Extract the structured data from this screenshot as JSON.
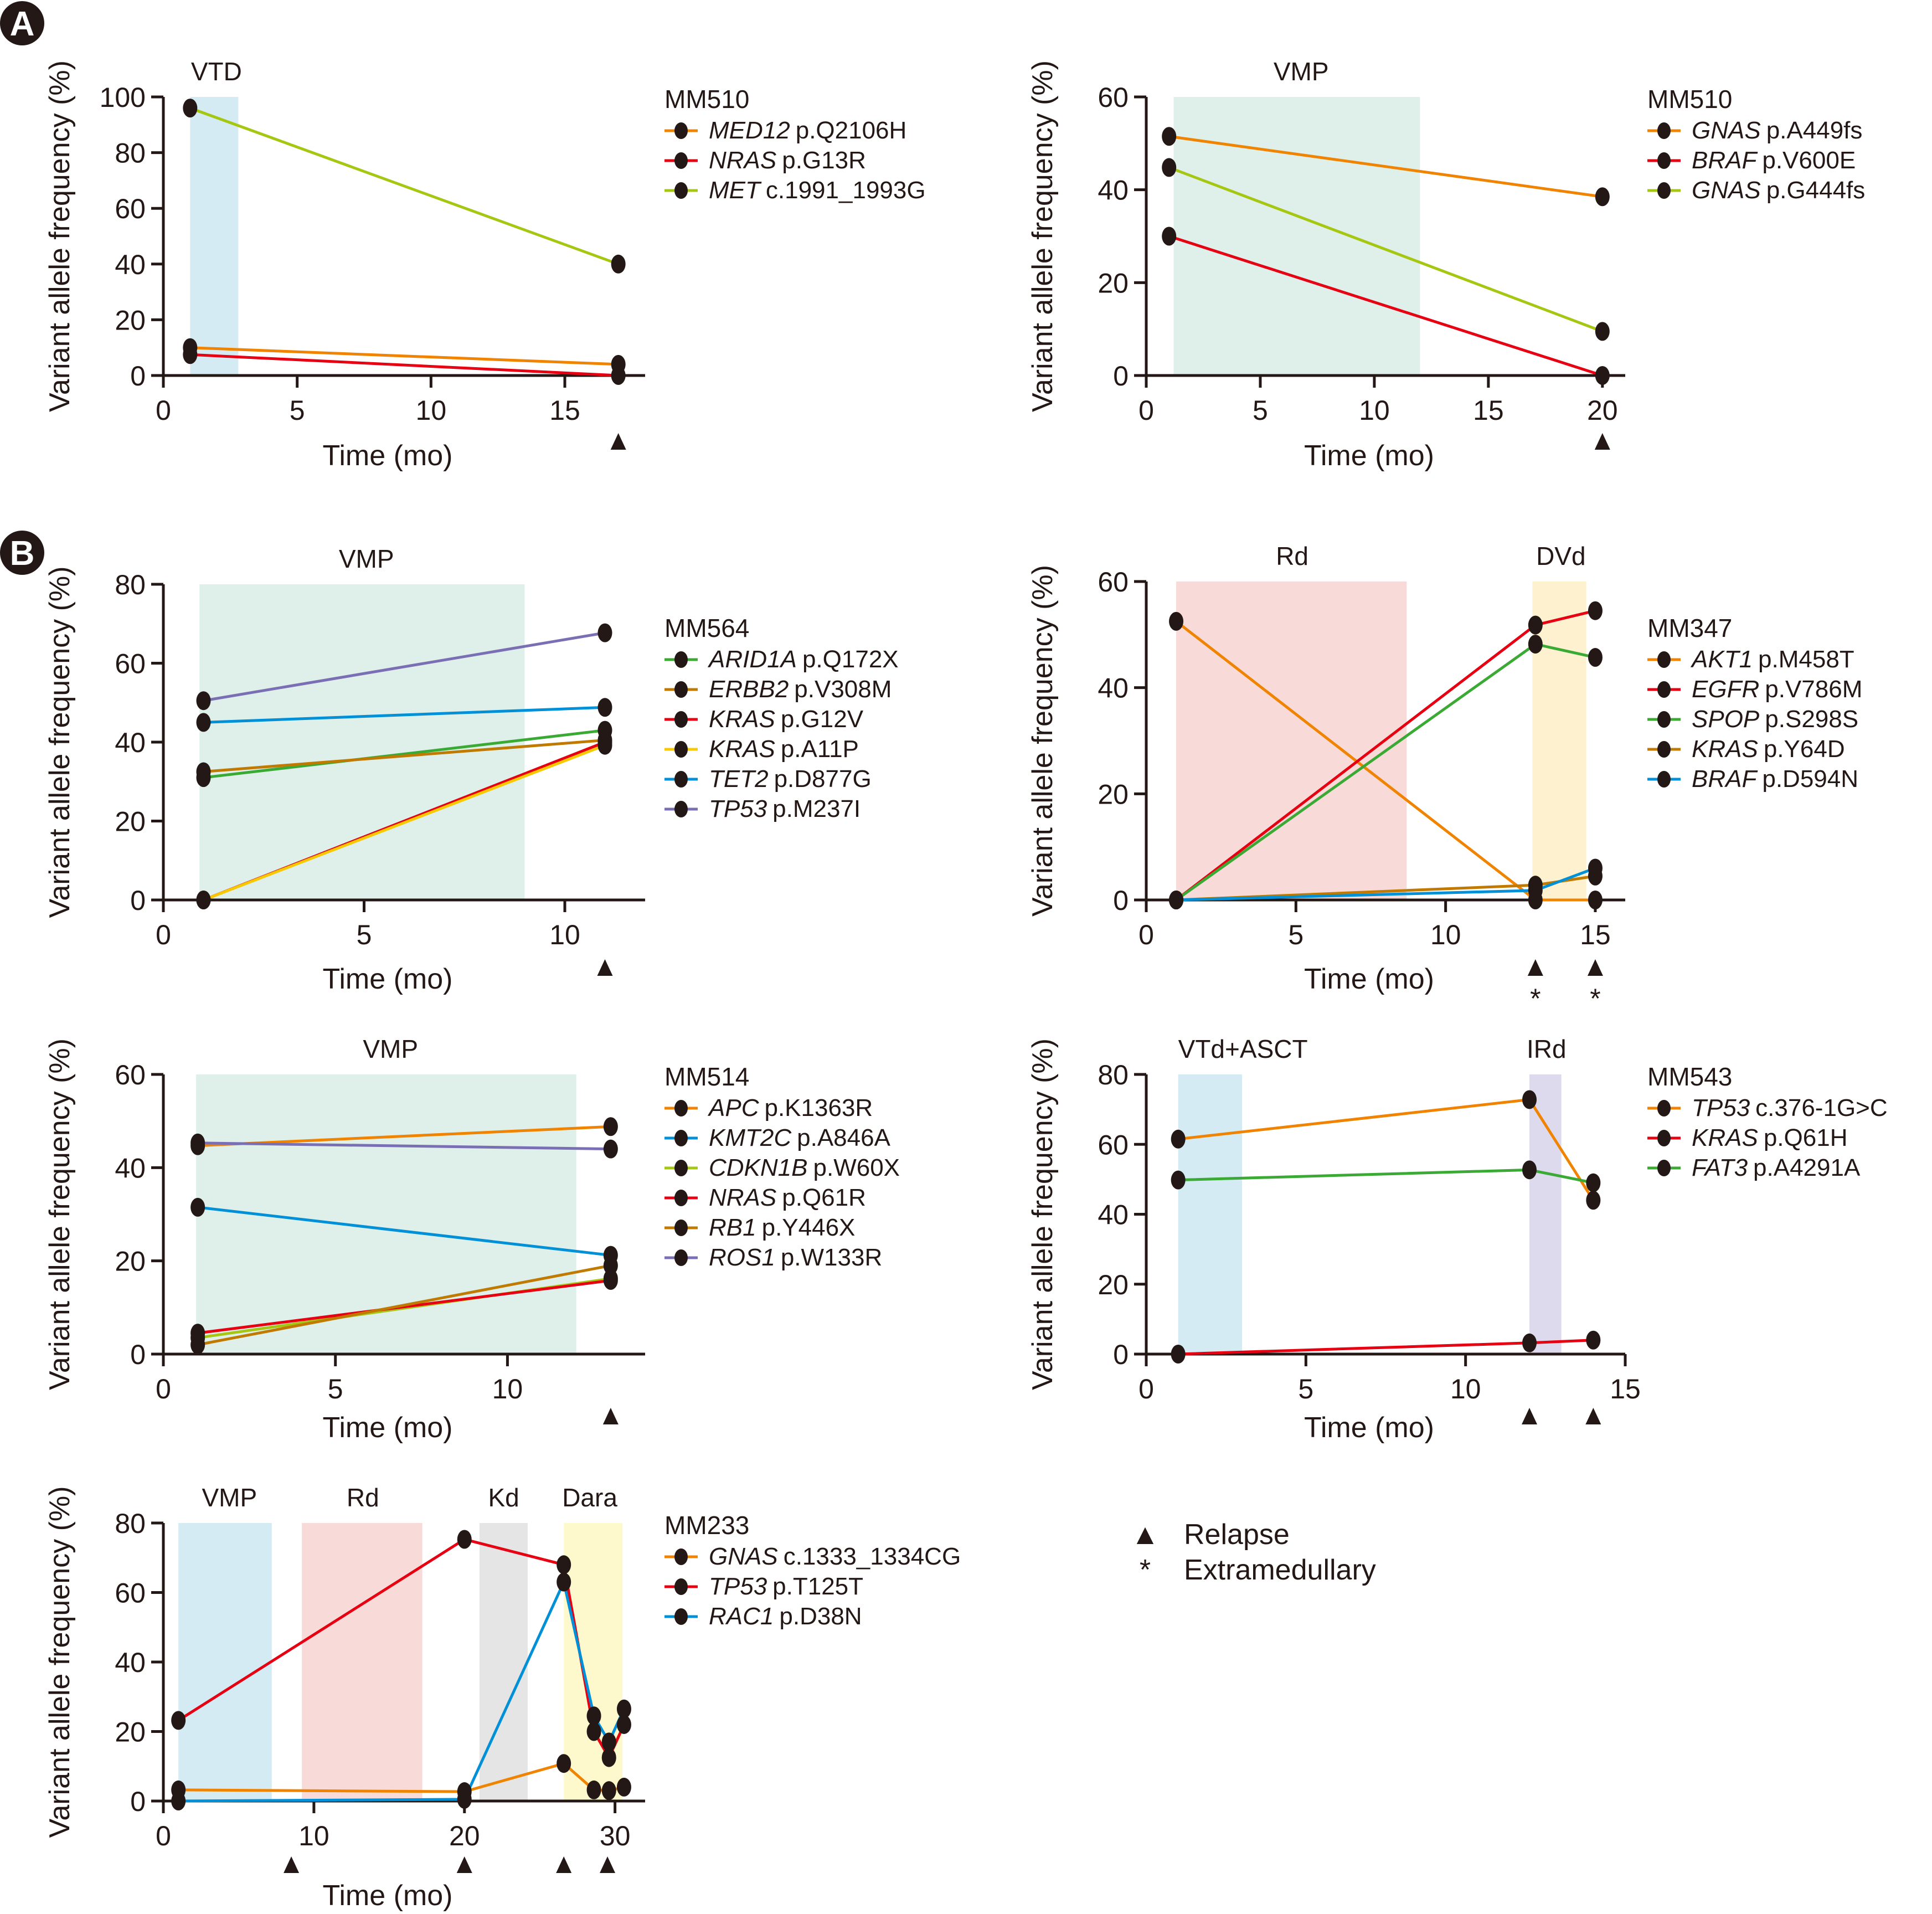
{
  "figure": {
    "panel_letters": [
      "A",
      "B"
    ],
    "key": {
      "relapse_label": "Relapse",
      "extramedullary_label": "Extramedullary",
      "relapse_symbol": "▲",
      "extramedullary_symbol": "*"
    }
  },
  "chart_data": [
    {
      "id": "A1",
      "type": "line",
      "patient": "MM510",
      "xlabel": "Time (mo)",
      "ylabel": "Variant allele frequency (%)",
      "xlim": [
        0,
        18
      ],
      "ylim": [
        0,
        100
      ],
      "xticks": [
        0,
        5,
        10,
        15
      ],
      "yticks": [
        0,
        20,
        40,
        60,
        80,
        100
      ],
      "treatments": [
        {
          "label": "VTD",
          "start": 1.0,
          "end": 2.8,
          "color": "#d4ebf3"
        }
      ],
      "relapse": [
        17
      ],
      "extramedullary": [],
      "series": [
        {
          "gene": "MED12",
          "mutation": "p.Q2106H",
          "color": "#f08300",
          "x": [
            1,
            17
          ],
          "values": [
            10,
            4
          ]
        },
        {
          "gene": "NRAS",
          "mutation": "p.G13R",
          "color": "#e60012",
          "x": [
            1,
            17
          ],
          "values": [
            7.5,
            0
          ]
        },
        {
          "gene": "MET",
          "mutation": "c.1991_1993G",
          "color": "#a5c712",
          "x": [
            1,
            17
          ],
          "values": [
            96,
            40
          ]
        }
      ]
    },
    {
      "id": "A2",
      "type": "line",
      "patient": "MM510",
      "xlabel": "Time (mo)",
      "ylabel": "Variant allele frequency (%)",
      "xlim": [
        0,
        21
      ],
      "ylim": [
        0,
        60
      ],
      "xticks": [
        0,
        5,
        10,
        15,
        20
      ],
      "yticks": [
        0,
        20,
        40,
        60
      ],
      "treatments": [
        {
          "label": "VMP",
          "start": 1.2,
          "end": 12,
          "color": "#dff0eb"
        }
      ],
      "relapse": [
        20
      ],
      "extramedullary": [],
      "series": [
        {
          "gene": "GNAS",
          "mutation": "p.A449fs",
          "color": "#f08300",
          "x": [
            1,
            20
          ],
          "values": [
            51.5,
            38.5
          ]
        },
        {
          "gene": "BRAF",
          "mutation": "p.V600E",
          "color": "#e60012",
          "x": [
            1,
            20
          ],
          "values": [
            30,
            0
          ]
        },
        {
          "gene": "GNAS",
          "mutation": "p.G444fs",
          "color": "#a5c712",
          "x": [
            1,
            20
          ],
          "values": [
            44.8,
            9.5
          ]
        }
      ]
    },
    {
      "id": "B1",
      "type": "line",
      "patient": "MM564",
      "xlabel": "Time (mo)",
      "ylabel": "Variant allele frequency (%)",
      "xlim": [
        0,
        12
      ],
      "ylim": [
        0,
        80
      ],
      "xticks": [
        0,
        5,
        10
      ],
      "yticks": [
        0,
        20,
        40,
        60,
        80
      ],
      "treatments": [
        {
          "label": "VMP",
          "start": 0.9,
          "end": 9,
          "color": "#dff0eb"
        }
      ],
      "relapse": [
        11
      ],
      "extramedullary": [],
      "series": [
        {
          "gene": "ARID1A",
          "mutation": "p.Q172X",
          "color": "#3aaa35",
          "x": [
            1,
            11
          ],
          "values": [
            31,
            43
          ]
        },
        {
          "gene": "ERBB2",
          "mutation": "p.V308M",
          "color": "#c07a00",
          "x": [
            1,
            11
          ],
          "values": [
            32.5,
            40.5
          ]
        },
        {
          "gene": "KRAS",
          "mutation": "p.G12V",
          "color": "#e60012",
          "x": [
            1,
            11
          ],
          "values": [
            0,
            40
          ]
        },
        {
          "gene": "KRAS",
          "mutation": "p.A11P",
          "color": "#f8c800",
          "x": [
            1,
            11
          ],
          "values": [
            0,
            39.2
          ]
        },
        {
          "gene": "TET2",
          "mutation": "p.D877G",
          "color": "#0090d8",
          "x": [
            1,
            11
          ],
          "values": [
            45,
            48.8
          ]
        },
        {
          "gene": "TP53",
          "mutation": "p.M237I",
          "color": "#7a6fb4",
          "x": [
            1,
            11
          ],
          "values": [
            50.5,
            67.7
          ]
        }
      ]
    },
    {
      "id": "B2",
      "type": "line",
      "patient": "MM347",
      "xlabel": "Time (mo)",
      "ylabel": "Variant allele frequency (%)",
      "xlim": [
        0,
        16
      ],
      "ylim": [
        0,
        60
      ],
      "xticks": [
        0,
        5,
        10,
        15
      ],
      "yticks": [
        0,
        20,
        40,
        60
      ],
      "treatments": [
        {
          "label": "Rd",
          "start": 1,
          "end": 8.7,
          "color": "#f8dad8"
        },
        {
          "label": "DVd",
          "start": 12.9,
          "end": 14.7,
          "color": "#fdf1cf"
        }
      ],
      "relapse": [
        13,
        15
      ],
      "extramedullary": [
        13,
        15
      ],
      "series": [
        {
          "gene": "AKT1",
          "mutation": "p.M458T",
          "color": "#f08300",
          "x": [
            1,
            13,
            15
          ],
          "values": [
            52.5,
            0,
            0
          ]
        },
        {
          "gene": "EGFR",
          "mutation": "p.V786M",
          "color": "#e60012",
          "x": [
            1,
            13,
            15
          ],
          "values": [
            0,
            51.8,
            54.5
          ]
        },
        {
          "gene": "SPOP",
          "mutation": "p.S298S",
          "color": "#3aaa35",
          "x": [
            1,
            13,
            15
          ],
          "values": [
            0,
            48.2,
            45.7
          ]
        },
        {
          "gene": "KRAS",
          "mutation": "p.Y64D",
          "color": "#c07a00",
          "x": [
            1,
            13,
            15
          ],
          "values": [
            0,
            2.8,
            4.5
          ]
        },
        {
          "gene": "BRAF",
          "mutation": "p.D594N",
          "color": "#0090d8",
          "x": [
            1,
            13,
            15
          ],
          "values": [
            0,
            1.8,
            6
          ]
        }
      ]
    },
    {
      "id": "B3",
      "type": "line",
      "patient": "MM514",
      "xlabel": "Time (mo)",
      "ylabel": "Variant allele frequency (%)",
      "xlim": [
        0,
        14
      ],
      "ylim": [
        0,
        60
      ],
      "xticks": [
        0,
        5,
        10
      ],
      "yticks": [
        0,
        20,
        40,
        60
      ],
      "treatments": [
        {
          "label": "VMP",
          "start": 0.95,
          "end": 12,
          "color": "#dff0eb"
        }
      ],
      "relapse": [
        13
      ],
      "extramedullary": [],
      "series": [
        {
          "gene": "APC",
          "mutation": "p.K1363R",
          "color": "#f08300",
          "x": [
            1,
            13
          ],
          "values": [
            44.7,
            48.8
          ]
        },
        {
          "gene": "KMT2C",
          "mutation": "p.A846A",
          "color": "#0090d8",
          "x": [
            1,
            13
          ],
          "values": [
            31.5,
            21.2
          ]
        },
        {
          "gene": "CDKN1B",
          "mutation": "p.W60X",
          "color": "#a5c712",
          "x": [
            1,
            13
          ],
          "values": [
            3.5,
            16.2
          ]
        },
        {
          "gene": "NRAS",
          "mutation": "p.Q61R",
          "color": "#e60012",
          "x": [
            1,
            13
          ],
          "values": [
            4.5,
            15.8
          ]
        },
        {
          "gene": "RB1",
          "mutation": "p.Y446X",
          "color": "#c07a00",
          "x": [
            1,
            13
          ],
          "values": [
            2,
            19
          ]
        },
        {
          "gene": "ROS1",
          "mutation": "p.W133R",
          "color": "#7a6fb4",
          "x": [
            1,
            13
          ],
          "values": [
            45.3,
            44
          ]
        }
      ]
    },
    {
      "id": "B4",
      "type": "line",
      "patient": "MM543",
      "xlabel": "Time (mo)",
      "ylabel": "Variant allele frequency (%)",
      "xlim": [
        0,
        15
      ],
      "ylim": [
        0,
        80
      ],
      "xticks": [
        0,
        5,
        10,
        15
      ],
      "yticks": [
        0,
        20,
        40,
        60,
        80
      ],
      "treatments": [
        {
          "label": "VTd+ASCT",
          "start": 1,
          "end": 3,
          "color": "#d4ebf3"
        },
        {
          "label": "IRd",
          "start": 12,
          "end": 13,
          "color": "#dddaee"
        }
      ],
      "relapse": [
        12,
        14
      ],
      "extramedullary": [],
      "series": [
        {
          "gene": "TP53",
          "mutation": "c.376-1G>C",
          "color": "#f08300",
          "x": [
            1,
            12,
            14
          ],
          "values": [
            61.5,
            72.8,
            44
          ]
        },
        {
          "gene": "KRAS",
          "mutation": "p.Q61H",
          "color": "#e60012",
          "x": [
            1,
            12,
            14
          ],
          "values": [
            0,
            3.2,
            4
          ]
        },
        {
          "gene": "FAT3",
          "mutation": "p.A4291A",
          "color": "#3aaa35",
          "x": [
            1,
            12,
            14
          ],
          "values": [
            49.8,
            52.7,
            49
          ]
        }
      ]
    },
    {
      "id": "B5",
      "type": "line",
      "patient": "MM233",
      "xlabel": "Time (mo)",
      "ylabel": "Variant allele frequency (%)",
      "xlim": [
        0,
        32
      ],
      "ylim": [
        0,
        80
      ],
      "xticks": [
        0,
        10,
        20,
        30
      ],
      "yticks": [
        0,
        20,
        40,
        60,
        80
      ],
      "treatments": [
        {
          "label": "VMP",
          "start": 1,
          "end": 7.2,
          "color": "#d4ebf3"
        },
        {
          "label": "Rd",
          "start": 9.2,
          "end": 17.2,
          "color": "#f8dad8"
        },
        {
          "label": "Kd",
          "start": 21,
          "end": 24.2,
          "color": "#e5e5e5"
        },
        {
          "label": "Dara",
          "start": 26.6,
          "end": 30.5,
          "color": "#fdf9cc"
        }
      ],
      "relapse": [
        8.5,
        20,
        26.6,
        29.5
      ],
      "extramedullary": [],
      "series": [
        {
          "gene": "GNAS",
          "mutation": "c.1333_1334CG",
          "color": "#f08300",
          "x": [
            1,
            20,
            26.6,
            28.6,
            29.6,
            30.6
          ],
          "values": [
            3.2,
            2.7,
            10.8,
            3.2,
            3.0,
            4.0
          ]
        },
        {
          "gene": "TP53",
          "mutation": "p.T125T",
          "color": "#e60012",
          "x": [
            1,
            20,
            26.6,
            28.6,
            29.6,
            30.6
          ],
          "values": [
            23.2,
            75.3,
            68,
            20,
            12.5,
            22
          ]
        },
        {
          "gene": "RAC1",
          "mutation": "p.D38N",
          "color": "#0090d8",
          "x": [
            1,
            20,
            26.6,
            28.6,
            29.6,
            30.6
          ],
          "values": [
            0,
            0.5,
            63,
            24.5,
            17,
            26.5
          ]
        }
      ]
    }
  ]
}
